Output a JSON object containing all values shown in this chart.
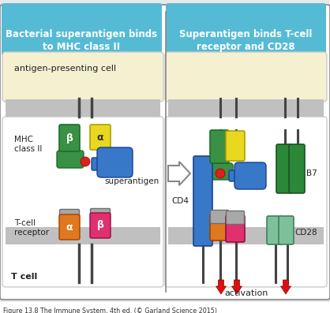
{
  "title_left": "Bacterial superantigen binds\nto MHC class II",
  "title_right": "Superantigen binds T-cell\nreceptor and CD28",
  "label_apc": "antigen-presenting cell",
  "label_mhc": "MHC\nclass II",
  "label_super": "superantigen",
  "label_tcr": "T-cell\nreceptor",
  "label_tcell": "T cell",
  "label_cd4": "CD4",
  "label_b7": "B7",
  "label_cd28": "CD28",
  "label_activation": "activation",
  "label_caption": "Figure 13.8 The Immune System, 4th ed. (© Garland Science 2015)",
  "color_blue_header": "#55bbd5",
  "color_apc_bg": "#f5f0d0",
  "color_tcell_bg": "#f0f0f0",
  "color_membrane": "#c0c0c0",
  "color_green_dark": "#3a9045",
  "color_yellow": "#e8d820",
  "color_blue_protein": "#3878c8",
  "color_orange_top": "#e07820",
  "color_gray_top": "#a8a8a8",
  "color_orange_bot": "#e07820",
  "color_pink_bot": "#e03070",
  "color_red_dot": "#dd2020",
  "color_green_b7": "#2a8838",
  "color_teal_cd28": "#7ec09a",
  "color_arrow_red": "#dd1010",
  "color_border": "#888888",
  "color_white": "#ffffff",
  "color_panel_bg": "#f0f0f0",
  "color_text": "#222222",
  "fig_bg": "#ffffff"
}
